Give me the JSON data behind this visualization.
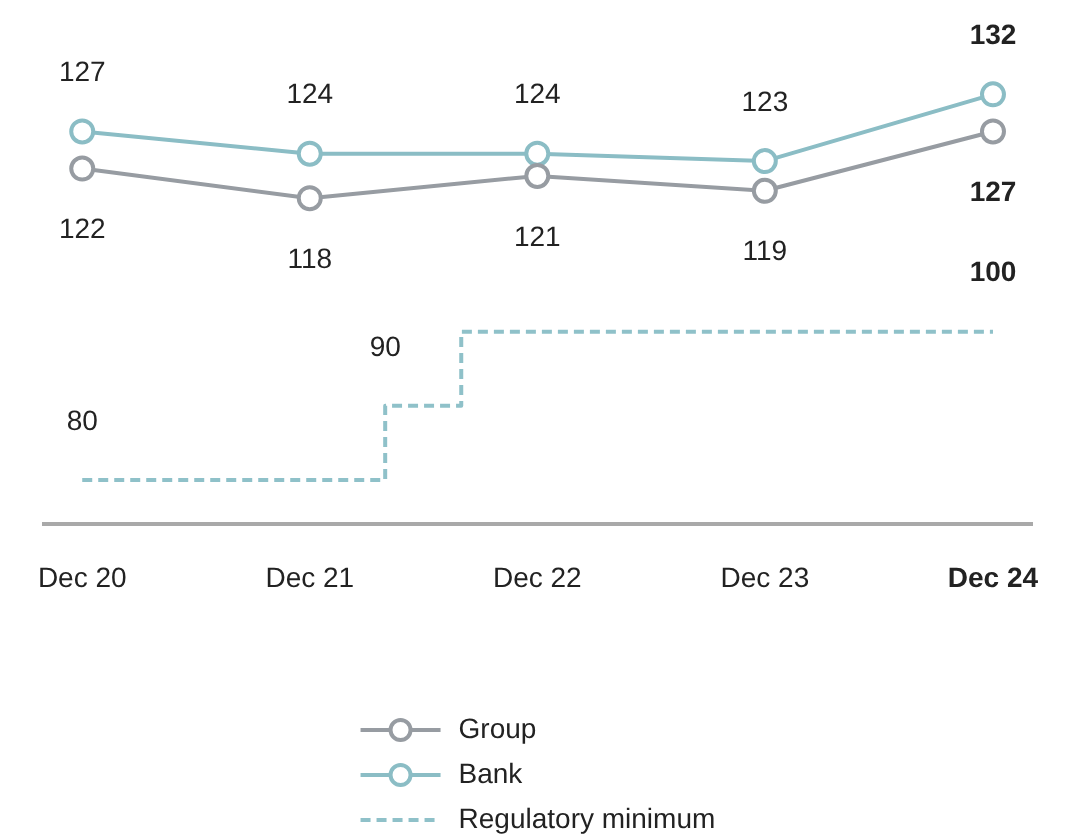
{
  "chart_data": {
    "type": "line",
    "x": [
      "2020-12",
      "2021-12",
      "2022-12",
      "2023-12",
      "2024-12"
    ],
    "xlim": [
      "2020-10",
      "2025-02"
    ],
    "xticks": [
      {
        "value": "2020-12",
        "label": "Dec 20"
      },
      {
        "value": "2021-12",
        "label": "Dec 21"
      },
      {
        "value": "2022-12",
        "label": "Dec 22"
      },
      {
        "value": "2023-12",
        "label": "Dec 23"
      },
      {
        "value": "2024-12",
        "label": "Dec 24"
      }
    ],
    "tick_labels": "x",
    "legend": "bottom",
    "marker": "circle",
    "line_style": "solid",
    "series": [
      {
        "name": "Group",
        "color": "#979ca2",
        "values": [
          122,
          118,
          121,
          119,
          127
        ],
        "value_labels": [
          "122",
          "118",
          "121",
          "119",
          "127"
        ]
      },
      {
        "name": "Bank",
        "color": "#8bbdc5",
        "values": [
          127,
          124,
          124,
          123,
          132
        ],
        "value_labels": [
          "127",
          "124",
          "124",
          "123",
          "132"
        ]
      },
      {
        "name": "Regulatory minimum",
        "type": "step",
        "color": "#8fc1c9",
        "x": [
          "2020-12",
          "2022-04",
          "2022-08",
          "2024-12"
        ],
        "values": [
          80,
          90,
          100,
          100
        ],
        "value_labels": [
          "80",
          "90",
          null,
          "100"
        ],
        "marker": "none",
        "line_style": "dashed"
      }
    ]
  }
}
